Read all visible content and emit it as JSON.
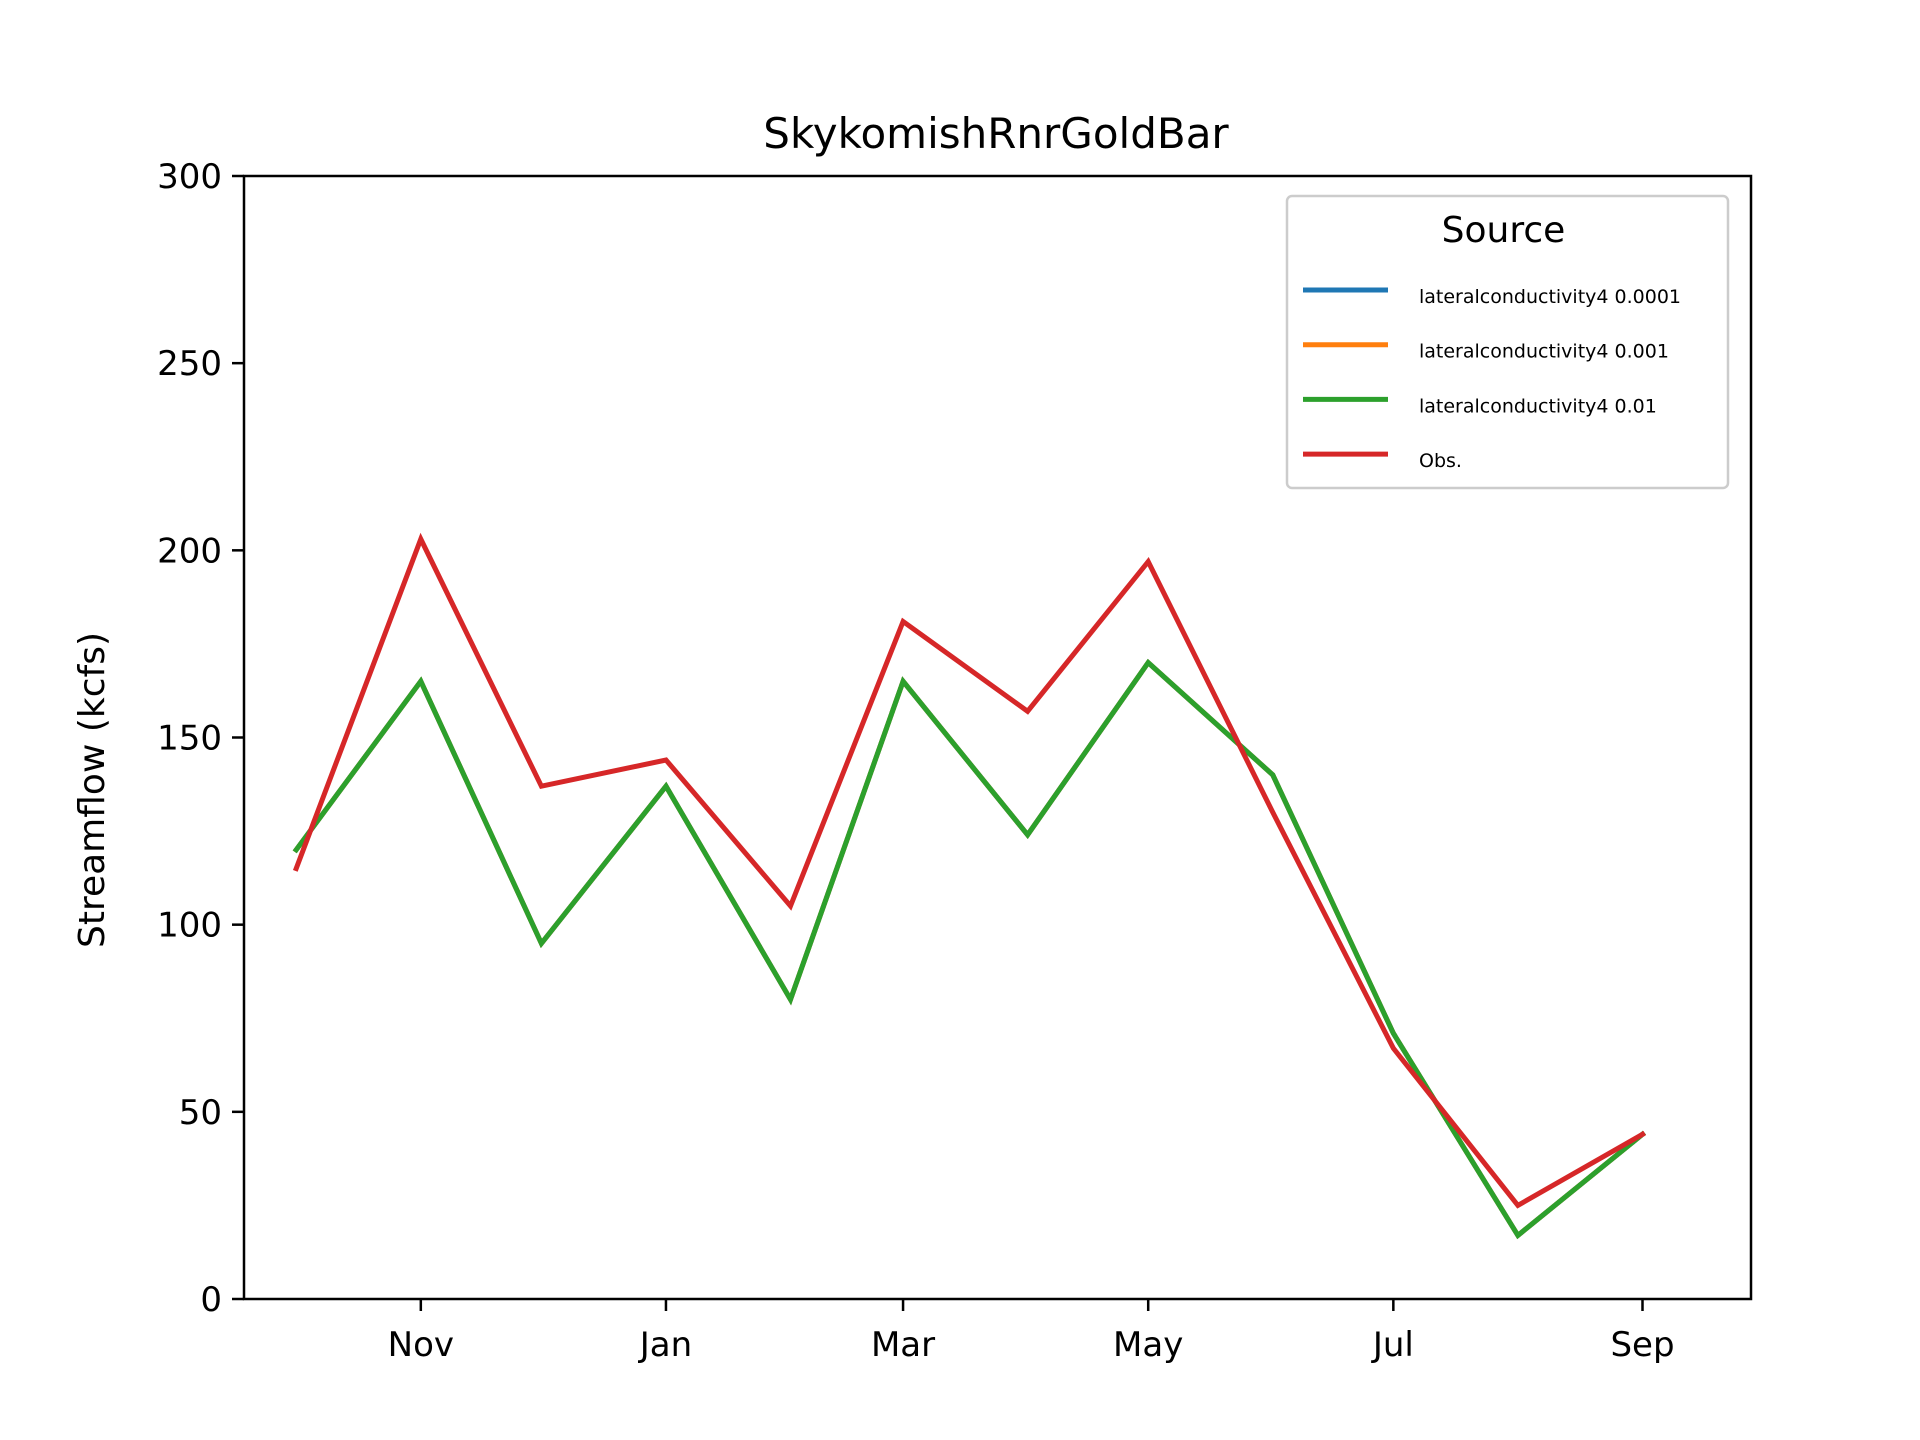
{
  "chart_data": {
    "type": "line",
    "title": "SkykomishRnrGoldBar",
    "xlabel": "",
    "ylabel": "Streamflow (kcfs)",
    "ylim": [
      0,
      300
    ],
    "yticks": [
      0,
      50,
      100,
      150,
      200,
      250,
      300
    ],
    "x": [
      "2000-10-01",
      "2000-11-01",
      "2000-12-01",
      "2001-01-01",
      "2001-02-01",
      "2001-03-01",
      "2001-04-01",
      "2001-05-01",
      "2001-06-01",
      "2001-07-01",
      "2001-08-01",
      "2001-09-01"
    ],
    "xlim": [
      "2000-09-18",
      "2001-09-28"
    ],
    "xticks": [
      {
        "date": "2000-11-01",
        "label": "Nov"
      },
      {
        "date": "2001-01-01",
        "label": "Jan"
      },
      {
        "date": "2001-03-01",
        "label": "Mar"
      },
      {
        "date": "2001-05-01",
        "label": "May"
      },
      {
        "date": "2001-07-01",
        "label": "Jul"
      },
      {
        "date": "2001-09-01",
        "label": "Sep"
      }
    ],
    "legend": {
      "title": "Source",
      "placement": "top-right"
    },
    "series": [
      {
        "name": "lateralconductivity4 0.0001",
        "color": "#1f77b4",
        "values": [
          120,
          165,
          95,
          137,
          80,
          165,
          124,
          170,
          140,
          71,
          17,
          44
        ]
      },
      {
        "name": "lateralconductivity4 0.001",
        "color": "#ff7f0e",
        "values": [
          120,
          165,
          95,
          137,
          80,
          165,
          124,
          170,
          140,
          71,
          17,
          44
        ]
      },
      {
        "name": "lateralconductivity4 0.01",
        "color": "#2ca02c",
        "values": [
          120,
          165,
          95,
          137,
          80,
          165,
          124,
          170,
          140,
          71,
          17,
          44
        ]
      },
      {
        "name": "Obs.",
        "color": "#d62728",
        "values": [
          115,
          203,
          137,
          144,
          105,
          181,
          157,
          197,
          130,
          67,
          25,
          44
        ]
      }
    ]
  }
}
